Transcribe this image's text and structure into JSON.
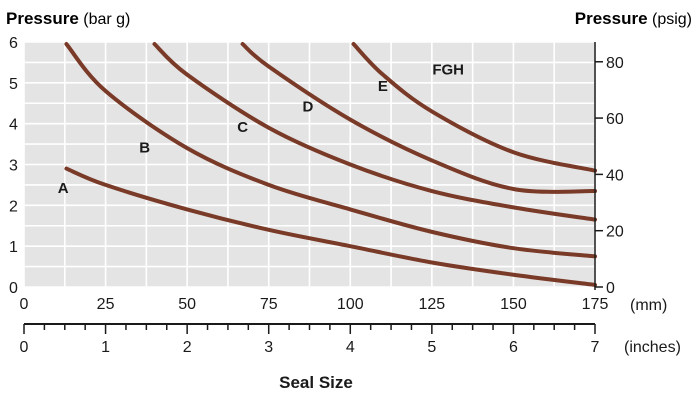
{
  "chart_data": {
    "type": "line",
    "left_axis_title": "Pressure",
    "left_axis_unit": "(bar g)",
    "right_axis_title": "Pressure",
    "right_axis_unit": "(psig)",
    "x_title": "Seal Size",
    "x_unit_mm": "(mm)",
    "x_unit_inches": "(inches)",
    "ylim": [
      0,
      6
    ],
    "xlim_mm": [
      0,
      175
    ],
    "xlim_inches": [
      0,
      7
    ],
    "y_ticks_bar": [
      "0",
      "1",
      "2",
      "3",
      "4",
      "5",
      "6"
    ],
    "y_ticks_psig": [
      "0",
      "20",
      "40",
      "60",
      "80"
    ],
    "x_ticks_mm": [
      "0",
      "25",
      "50",
      "75",
      "100",
      "125",
      "150",
      "175"
    ],
    "x_ticks_inches": [
      "0",
      "1",
      "2",
      "3",
      "4",
      "5",
      "6",
      "7"
    ],
    "grid": true,
    "colors": {
      "curve": "#7a3a28",
      "plot_bg": "#e4e4e4",
      "grid": "#ffffff"
    },
    "series": [
      {
        "name": "A",
        "x": [
          13,
          25,
          50,
          75,
          100,
          125,
          150,
          175
        ],
        "y": [
          2.9,
          2.5,
          1.9,
          1.4,
          1.0,
          0.6,
          0.3,
          0.05
        ]
      },
      {
        "name": "B",
        "x": [
          13,
          25,
          50,
          75,
          100,
          125,
          150,
          175
        ],
        "y": [
          5.95,
          4.8,
          3.4,
          2.5,
          1.9,
          1.35,
          0.95,
          0.75
        ]
      },
      {
        "name": "C",
        "x": [
          40,
          50,
          75,
          100,
          125,
          150,
          175
        ],
        "y": [
          5.95,
          5.2,
          3.9,
          3.0,
          2.35,
          1.95,
          1.65
        ]
      },
      {
        "name": "D",
        "x": [
          67,
          75,
          100,
          125,
          150,
          175
        ],
        "y": [
          5.95,
          5.4,
          4.1,
          3.1,
          2.4,
          2.35
        ]
      },
      {
        "name": "E",
        "x": [
          101,
          110,
          125,
          150,
          175
        ],
        "y": [
          5.95,
          5.2,
          4.3,
          3.3,
          2.85
        ]
      }
    ],
    "curve_labels": [
      {
        "text": "A",
        "x": 12,
        "y": 2.3
      },
      {
        "text": "B",
        "x": 37,
        "y": 3.3
      },
      {
        "text": "C",
        "x": 67,
        "y": 3.8
      },
      {
        "text": "D",
        "x": 87,
        "y": 4.3
      },
      {
        "text": "E",
        "x": 110,
        "y": 4.8
      },
      {
        "text": "FGH",
        "x": 130,
        "y": 5.2
      }
    ]
  }
}
